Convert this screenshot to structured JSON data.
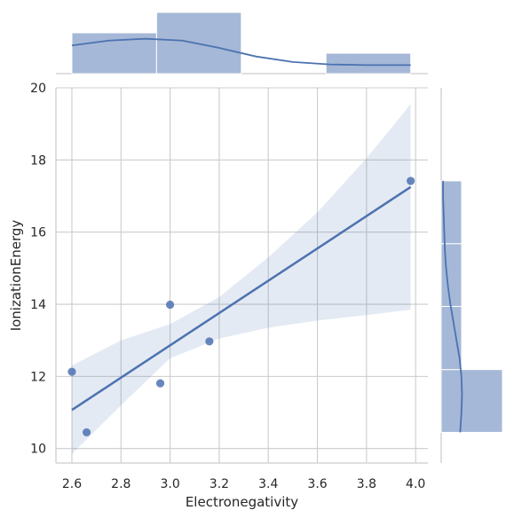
{
  "chart_data": {
    "type": "scatter",
    "xlabel": "Electronegativity",
    "ylabel": "IonizationEnergy",
    "xlim": [
      2.535,
      4.05
    ],
    "ylim": [
      9.6,
      20.0
    ],
    "xticks": [
      2.6,
      2.8,
      3.0,
      3.2,
      3.4,
      3.6,
      3.8,
      4.0
    ],
    "yticks": [
      10,
      12,
      14,
      16,
      18,
      20
    ],
    "grid": true,
    "color": "#4c72b0",
    "points": [
      {
        "x": 2.6,
        "y": 12.13
      },
      {
        "x": 2.66,
        "y": 10.45
      },
      {
        "x": 2.96,
        "y": 11.81
      },
      {
        "x": 3.0,
        "y": 13.99
      },
      {
        "x": 3.16,
        "y": 12.97
      },
      {
        "x": 3.98,
        "y": 17.42
      }
    ],
    "regression": {
      "line": [
        {
          "x": 2.6,
          "y": 11.07
        },
        {
          "x": 3.98,
          "y": 17.25
        }
      ],
      "ci_upper": [
        {
          "x": 2.6,
          "y": 12.3
        },
        {
          "x": 2.8,
          "y": 13.0
        },
        {
          "x": 3.0,
          "y": 13.45
        },
        {
          "x": 3.2,
          "y": 14.2
        },
        {
          "x": 3.4,
          "y": 15.3
        },
        {
          "x": 3.6,
          "y": 16.55
        },
        {
          "x": 3.8,
          "y": 18.05
        },
        {
          "x": 3.98,
          "y": 19.55
        }
      ],
      "ci_lower": [
        {
          "x": 2.6,
          "y": 9.85
        },
        {
          "x": 2.8,
          "y": 11.2
        },
        {
          "x": 3.0,
          "y": 12.5
        },
        {
          "x": 3.2,
          "y": 13.05
        },
        {
          "x": 3.4,
          "y": 13.35
        },
        {
          "x": 3.6,
          "y": 13.55
        },
        {
          "x": 3.8,
          "y": 13.7
        },
        {
          "x": 3.98,
          "y": 13.85
        }
      ]
    },
    "marginal_x": {
      "bins": [
        {
          "from": 2.6,
          "to": 2.945,
          "count": 2
        },
        {
          "from": 2.945,
          "to": 3.29,
          "count": 3
        },
        {
          "from": 3.29,
          "to": 3.635,
          "count": 0
        },
        {
          "from": 3.635,
          "to": 3.98,
          "count": 1
        }
      ],
      "kde": [
        {
          "x": 2.6,
          "d": 0.46
        },
        {
          "x": 2.75,
          "d": 0.54
        },
        {
          "x": 2.9,
          "d": 0.57
        },
        {
          "x": 3.05,
          "d": 0.54
        },
        {
          "x": 3.2,
          "d": 0.42
        },
        {
          "x": 3.35,
          "d": 0.28
        },
        {
          "x": 3.5,
          "d": 0.19
        },
        {
          "x": 3.65,
          "d": 0.15
        },
        {
          "x": 3.8,
          "d": 0.14
        },
        {
          "x": 3.98,
          "d": 0.14
        }
      ]
    },
    "marginal_y": {
      "bins": [
        {
          "from": 10.45,
          "to": 12.19,
          "count": 3
        },
        {
          "from": 12.19,
          "to": 13.94,
          "count": 1
        },
        {
          "from": 13.94,
          "to": 15.68,
          "count": 1
        },
        {
          "from": 15.68,
          "to": 17.42,
          "count": 1
        }
      ],
      "kde": [
        {
          "y": 10.45,
          "d": 0.31
        },
        {
          "y": 11.0,
          "d": 0.33
        },
        {
          "y": 11.5,
          "d": 0.34
        },
        {
          "y": 12.0,
          "d": 0.33
        },
        {
          "y": 12.5,
          "d": 0.3
        },
        {
          "y": 13.0,
          "d": 0.25
        },
        {
          "y": 13.5,
          "d": 0.2
        },
        {
          "y": 14.0,
          "d": 0.15
        },
        {
          "y": 14.5,
          "d": 0.11
        },
        {
          "y": 15.0,
          "d": 0.08
        },
        {
          "y": 15.5,
          "d": 0.06
        },
        {
          "y": 16.0,
          "d": 0.05
        },
        {
          "y": 16.5,
          "d": 0.04
        },
        {
          "y": 17.0,
          "d": 0.03
        },
        {
          "y": 17.42,
          "d": 0.03
        }
      ]
    }
  }
}
